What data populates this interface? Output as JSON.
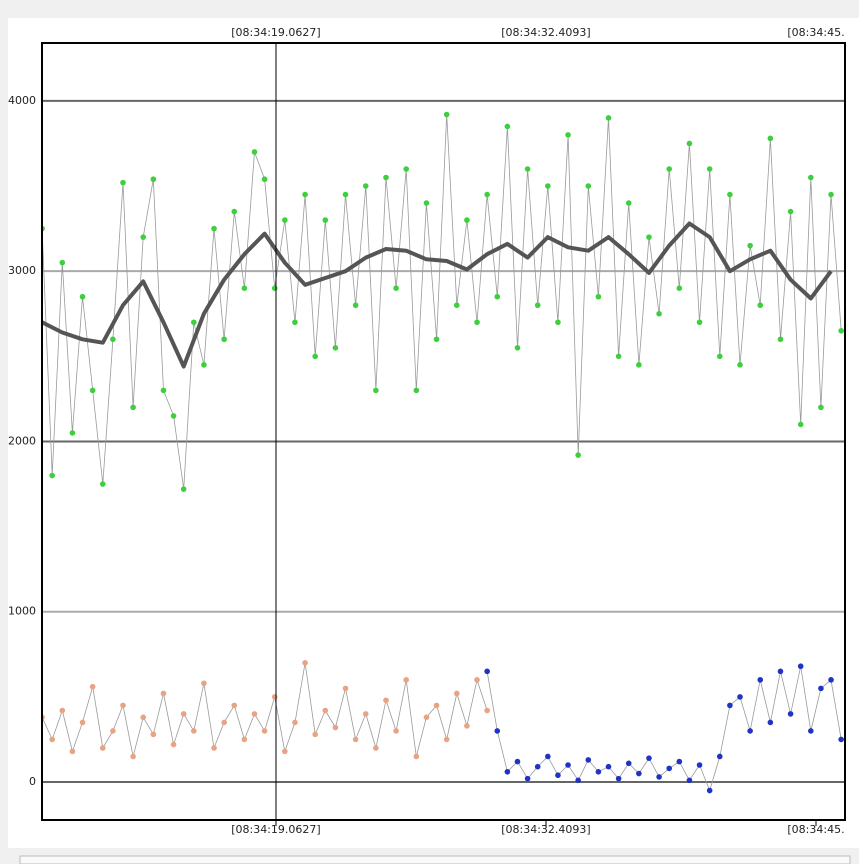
{
  "chart_data": {
    "type": "line",
    "xlim": [
      7.496,
      47.19
    ],
    "xticks": [
      {
        "value": 19.0627,
        "label": "[08:34:19.0627]"
      },
      {
        "value": 32.4093,
        "label": "[08:34:32.4093]"
      },
      {
        "value": 45.7559,
        "label": "[08:34:45."
      }
    ],
    "ylim": [
      -223,
      4340
    ],
    "yticks": [
      0,
      1000,
      2000,
      3000,
      4000
    ],
    "grid": true,
    "series": [
      {
        "color": "#3ecf3e",
        "x": [
          7.5,
          8,
          8.5,
          9,
          9.5,
          10,
          10.5,
          11,
          11.5,
          12,
          12.5,
          13,
          13.5,
          14,
          14.5,
          15,
          15.5,
          16,
          16.5,
          17,
          17.5,
          18,
          18.5,
          19,
          19.5,
          20,
          20.5,
          21,
          21.5,
          22,
          22.5,
          23,
          23.5,
          24,
          24.5,
          25,
          25.5,
          26,
          26.5,
          27,
          27.5,
          28,
          28.5,
          29,
          29.5,
          30,
          30.5,
          31,
          31.5,
          32,
          32.5,
          33,
          33.5,
          34,
          34.5,
          35,
          35.5,
          36,
          36.5,
          37,
          37.5,
          38,
          38.5,
          39,
          39.5,
          40,
          40.5,
          41,
          41.5,
          42,
          42.5,
          43,
          43.5,
          44,
          44.5,
          45,
          45.5,
          46,
          46.5,
          47
        ],
        "values": [
          3250,
          1800,
          3050,
          2050,
          2850,
          2300,
          1750,
          2600,
          3520,
          2200,
          3200,
          3540,
          2300,
          2150,
          1720,
          2700,
          2450,
          3250,
          2600,
          3350,
          2900,
          3700,
          3540,
          2900,
          3300,
          2700,
          3450,
          2500,
          3300,
          2550,
          3450,
          2800,
          3500,
          2300,
          3550,
          2900,
          3600,
          2300,
          3400,
          2600,
          3920,
          2800,
          3300,
          2700,
          3450,
          2850,
          3850,
          2550,
          3600,
          2800,
          3500,
          2700,
          3800,
          1920,
          3500,
          2850,
          3900,
          2500,
          3400,
          2450,
          3200,
          2750,
          3600,
          2900,
          3750,
          2700,
          3600,
          2500,
          3450,
          2450,
          3150,
          2800,
          3780,
          2600,
          3350,
          2100,
          3550,
          2200,
          3450,
          2650
        ]
      },
      {
        "color": "#e8a284",
        "x": [
          7.5,
          8,
          8.5,
          9,
          9.5,
          10,
          10.5,
          11,
          11.5,
          12,
          12.5,
          13,
          13.5,
          14,
          14.5,
          15,
          15.5,
          16,
          16.5,
          17,
          17.5,
          18,
          18.5,
          19,
          19.5,
          20,
          20.5,
          21,
          21.5,
          22,
          22.5,
          23,
          23.5,
          24,
          24.5,
          25,
          25.5,
          26,
          26.5,
          27,
          27.5,
          28,
          28.5,
          29,
          29.5
        ],
        "values": [
          380,
          250,
          420,
          180,
          350,
          560,
          200,
          300,
          450,
          150,
          380,
          280,
          520,
          220,
          400,
          300,
          580,
          200,
          350,
          450,
          250,
          400,
          300,
          500,
          180,
          350,
          700,
          280,
          420,
          320,
          550,
          250,
          400,
          200,
          480,
          300,
          600,
          150,
          380,
          450,
          250,
          520,
          330,
          600,
          420
        ]
      },
      {
        "color": "#1f33c4",
        "x": [
          29.5,
          30,
          30.5,
          31,
          31.5,
          32,
          32.5,
          33,
          33.5,
          34,
          34.5,
          35,
          35.5,
          36,
          36.5,
          37,
          37.5,
          38,
          38.5,
          39,
          39.5,
          40,
          40.5,
          41,
          41.5,
          42,
          42.5,
          43,
          43.5,
          44,
          44.5,
          45,
          45.5,
          46,
          46.5,
          47
        ],
        "values": [
          650,
          300,
          60,
          120,
          20,
          90,
          150,
          40,
          100,
          10,
          130,
          60,
          90,
          20,
          110,
          50,
          140,
          30,
          80,
          120,
          10,
          100,
          -50,
          150,
          450,
          500,
          300,
          600,
          350,
          650,
          400,
          680,
          300,
          550,
          600,
          250
        ]
      },
      {
        "color": "#555555",
        "markers": false,
        "x": [
          7.5,
          8.5,
          9.5,
          10.5,
          11.5,
          12.5,
          13.5,
          14.5,
          15.5,
          16.5,
          17.5,
          18.5,
          19.5,
          20.5,
          21.5,
          22.5,
          23.5,
          24.5,
          25.5,
          26.5,
          27.5,
          28.5,
          29.5,
          30.5,
          31.5,
          32.5,
          33.5,
          34.5,
          35.5,
          36.5,
          37.5,
          38.5,
          39.5,
          40.5,
          41.5,
          42.5,
          43.5,
          44.5,
          45.5,
          46.5
        ],
        "values": [
          2700,
          2640,
          2600,
          2580,
          2800,
          2940,
          2700,
          2440,
          2750,
          2950,
          3100,
          3220,
          3050,
          2920,
          2960,
          3000,
          3080,
          3130,
          3120,
          3070,
          3060,
          3010,
          3100,
          3160,
          3080,
          3200,
          3140,
          3120,
          3200,
          3100,
          2990,
          3150,
          3280,
          3200,
          3000,
          3070,
          3120,
          2950,
          2840,
          3000
        ]
      }
    ]
  }
}
